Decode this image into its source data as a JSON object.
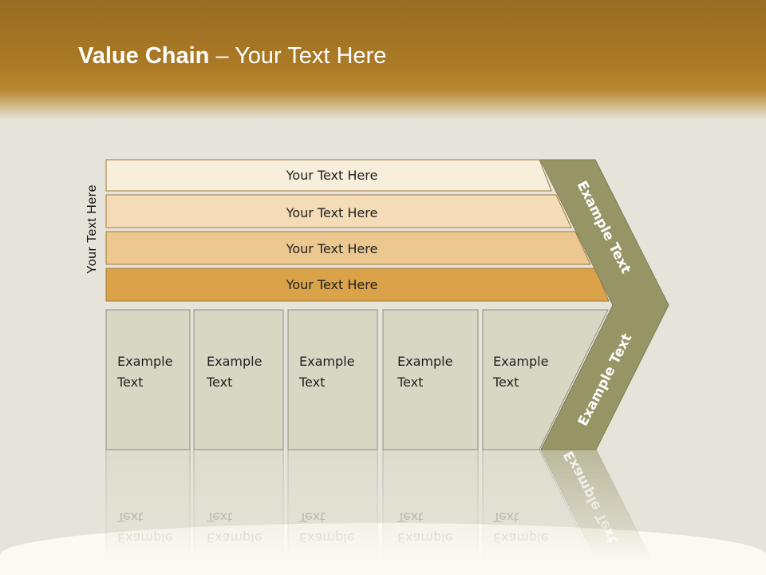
{
  "title": {
    "bold": "Value Chain",
    "rest": " – Your Text Here"
  },
  "side_label": "Your Text Here",
  "bars": [
    {
      "label": "Your Text Here",
      "color": "#f8eedc"
    },
    {
      "label": "Your Text Here",
      "color": "#f3dcb6"
    },
    {
      "label": "Your Text Here",
      "color": "#ecc890"
    },
    {
      "label": "Your Text Here",
      "color": "#daa349"
    }
  ],
  "columns": [
    {
      "line1": "Example",
      "line2": "Text"
    },
    {
      "line1": "Example",
      "line2": "Text"
    },
    {
      "line1": "Example",
      "line2": "Text"
    },
    {
      "line1": "Example",
      "line2": "Text"
    },
    {
      "line1": "Example",
      "line2": "Text"
    }
  ],
  "chevron": {
    "upper": "Example Text",
    "lower": "Example Text",
    "color": "#979566"
  },
  "column_color": "#d8d7c4"
}
